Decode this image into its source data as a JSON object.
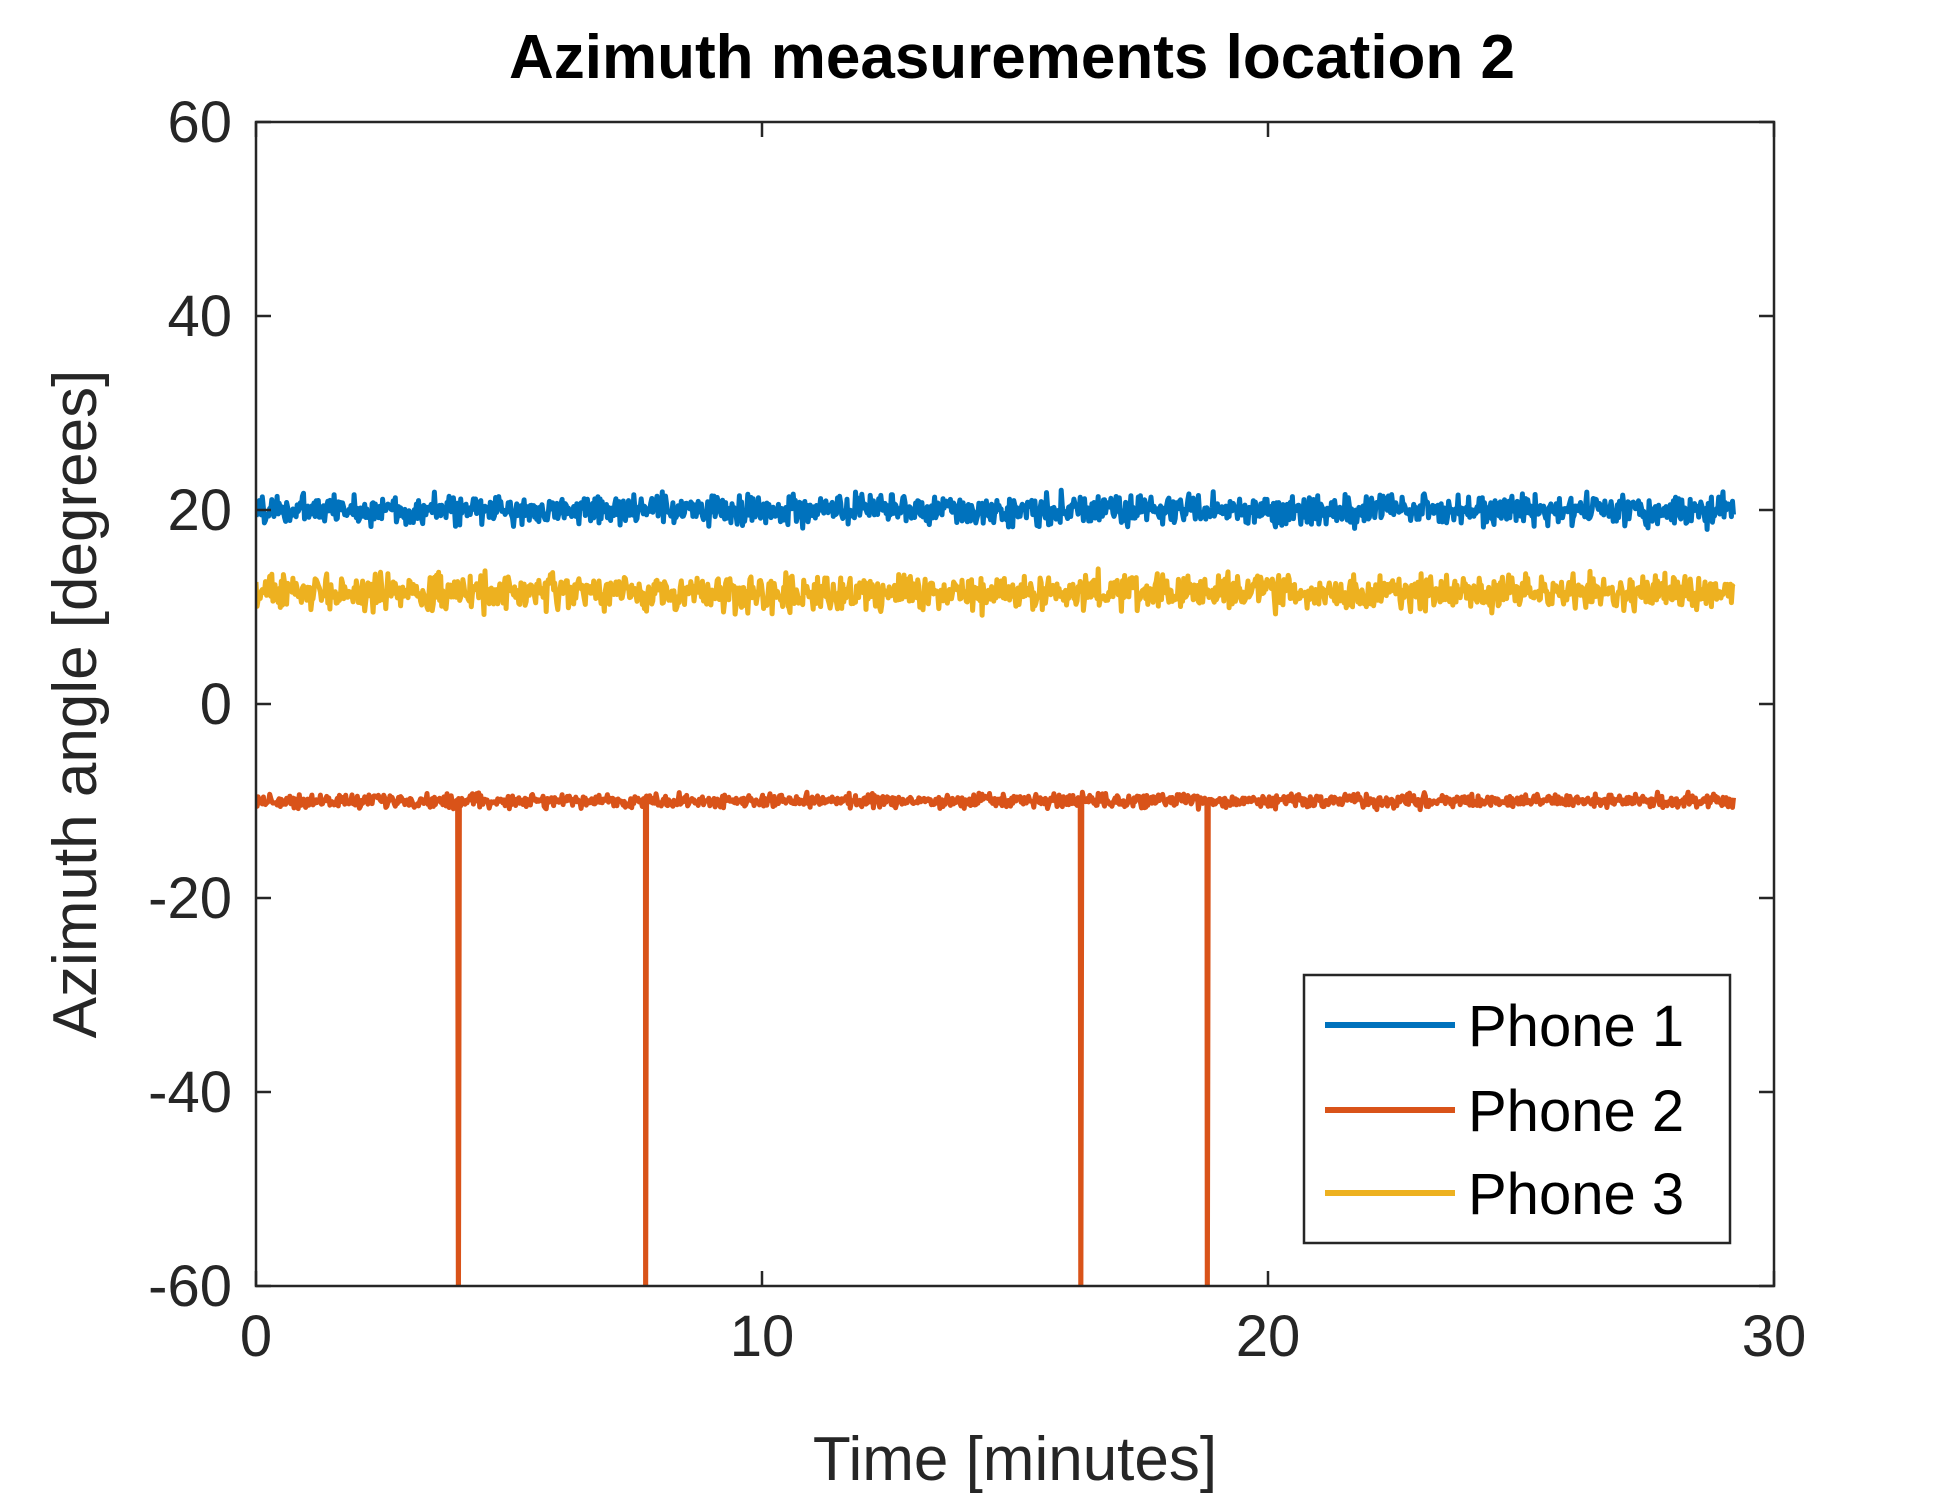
{
  "chart_data": {
    "type": "line",
    "title": "Azimuth measurements location 2",
    "xlabel": "Time [minutes]",
    "ylabel": "Azimuth angle [degrees]",
    "xlim": [
      0,
      30
    ],
    "ylim": [
      -60,
      60
    ],
    "xticks": [
      0,
      10,
      20,
      30
    ],
    "yticks": [
      -60,
      -40,
      -20,
      0,
      20,
      40,
      60
    ],
    "grid": false,
    "legend_position": "bottom-right",
    "series": [
      {
        "name": "Phone 1",
        "color": "#0072BD",
        "x_range": [
          0,
          29.2
        ],
        "mean": 20,
        "noise_amplitude": 2.2,
        "dropouts": []
      },
      {
        "name": "Phone 2",
        "color": "#D95319",
        "x_range": [
          0,
          29.2
        ],
        "mean": -10,
        "noise_amplitude": 1.0,
        "dropouts": [
          4.0,
          7.7,
          16.3,
          18.8
        ]
      },
      {
        "name": "Phone 3",
        "color": "#EDB120",
        "x_range": [
          0,
          29.2
        ],
        "mean": 11.5,
        "noise_amplitude": 2.6,
        "dropouts": []
      }
    ]
  }
}
